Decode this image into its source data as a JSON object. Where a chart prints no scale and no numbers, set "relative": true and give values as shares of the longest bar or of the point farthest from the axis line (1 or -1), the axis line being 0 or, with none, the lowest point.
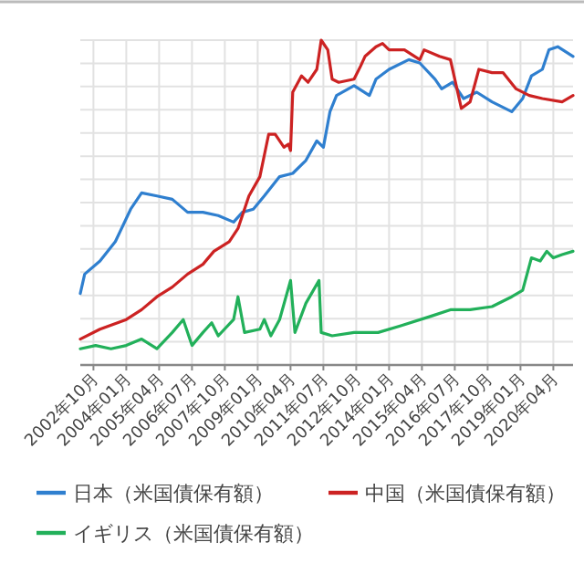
{
  "chart_data": {
    "type": "line",
    "relative": true,
    "grid": true,
    "legend": "bottom",
    "xlim": [
      "2002-04",
      "2021-01"
    ],
    "xticks": [
      {
        "value": "2002-10",
        "label": "2002年10月"
      },
      {
        "value": "2004-01",
        "label": "2004年01月"
      },
      {
        "value": "2005-04",
        "label": "2005年04月"
      },
      {
        "value": "2006-07",
        "label": "2006年07月"
      },
      {
        "value": "2007-10",
        "label": "2007年10月"
      },
      {
        "value": "2009-01",
        "label": "2009年01月"
      },
      {
        "value": "2010-04",
        "label": "2010年04月"
      },
      {
        "value": "2011-07",
        "label": "2011年07月"
      },
      {
        "value": "2012-10",
        "label": "2012年10月"
      },
      {
        "value": "2014-01",
        "label": "2014年01月"
      },
      {
        "value": "2015-04",
        "label": "2015年04月"
      },
      {
        "value": "2016-07",
        "label": "2016年07月"
      },
      {
        "value": "2017-10",
        "label": "2017年10月"
      },
      {
        "value": "2019-01",
        "label": "2019年01月"
      },
      {
        "value": "2020-04",
        "label": "2020年04月"
      }
    ],
    "series": [
      {
        "name": "日本（米国債保有額）",
        "color": "#2f7fcf",
        "x": [
          "2002-04",
          "2002-06",
          "2003-01",
          "2003-08",
          "2004-03",
          "2004-08",
          "2005-03",
          "2005-10",
          "2006-05",
          "2006-12",
          "2007-07",
          "2008-02",
          "2008-06",
          "2008-11",
          "2009-04",
          "2009-11",
          "2010-05",
          "2010-11",
          "2011-04",
          "2011-07",
          "2011-10",
          "2012-01",
          "2012-09",
          "2013-04",
          "2013-07",
          "2014-01",
          "2014-10",
          "2015-03",
          "2015-10",
          "2016-01",
          "2016-06",
          "2016-11",
          "2017-05",
          "2017-12",
          "2018-09",
          "2019-02",
          "2019-06",
          "2019-11",
          "2020-02",
          "2020-06",
          "2021-01"
        ],
        "values": [
          0.22,
          0.28,
          0.32,
          0.38,
          0.48,
          0.53,
          0.52,
          0.51,
          0.47,
          0.47,
          0.46,
          0.44,
          0.47,
          0.48,
          0.52,
          0.58,
          0.59,
          0.63,
          0.69,
          0.67,
          0.78,
          0.83,
          0.86,
          0.83,
          0.88,
          0.91,
          0.94,
          0.93,
          0.88,
          0.85,
          0.87,
          0.82,
          0.84,
          0.81,
          0.78,
          0.82,
          0.89,
          0.91,
          0.97,
          0.98,
          0.95
        ]
      },
      {
        "name": "中国（米国債保有額）",
        "color": "#cc2222",
        "x": [
          "2002-04",
          "2003-01",
          "2004-01",
          "2004-08",
          "2005-03",
          "2005-10",
          "2006-05",
          "2006-12",
          "2007-05",
          "2007-12",
          "2008-04",
          "2008-09",
          "2009-02",
          "2009-06",
          "2009-09",
          "2010-01",
          "2010-03",
          "2010-04",
          "2010-05",
          "2010-09",
          "2010-12",
          "2011-04",
          "2011-06",
          "2011-09",
          "2011-11",
          "2012-02",
          "2012-09",
          "2012-12",
          "2013-02",
          "2013-07",
          "2013-10",
          "2014-01",
          "2014-08",
          "2015-03",
          "2015-05",
          "2015-12",
          "2016-05",
          "2016-10",
          "2017-02",
          "2017-06",
          "2017-12",
          "2018-05",
          "2018-11",
          "2019-05",
          "2019-11",
          "2020-08",
          "2021-01"
        ],
        "values": [
          0.08,
          0.11,
          0.14,
          0.17,
          0.21,
          0.24,
          0.28,
          0.31,
          0.35,
          0.38,
          0.42,
          0.52,
          0.58,
          0.71,
          0.71,
          0.67,
          0.68,
          0.66,
          0.84,
          0.89,
          0.87,
          0.91,
          1,
          0.97,
          0.88,
          0.87,
          0.88,
          0.92,
          0.95,
          0.98,
          0.99,
          0.97,
          0.97,
          0.94,
          0.97,
          0.95,
          0.94,
          0.79,
          0.81,
          0.91,
          0.9,
          0.9,
          0.85,
          0.83,
          0.82,
          0.81,
          0.83
        ]
      },
      {
        "name": "イギリス（米国債保有額）",
        "color": "#22b05a",
        "x": [
          "2002-04",
          "2002-11",
          "2003-06",
          "2004-01",
          "2004-08",
          "2005-03",
          "2005-10",
          "2006-03",
          "2006-07",
          "2006-12",
          "2007-04",
          "2007-07",
          "2008-02",
          "2008-04",
          "2008-07",
          "2009-02",
          "2009-04",
          "2009-07",
          "2009-11",
          "2010-04",
          "2010-06",
          "2010-11",
          "2011-05",
          "2011-06",
          "2011-11",
          "2012-09",
          "2013-08",
          "2014-06",
          "2015-08",
          "2016-05",
          "2017-02",
          "2017-12",
          "2018-09",
          "2019-02",
          "2019-06",
          "2019-10",
          "2020-01",
          "2020-04",
          "2020-08",
          "2021-01"
        ],
        "values": [
          0.05,
          0.06,
          0.05,
          0.06,
          0.08,
          0.05,
          0.1,
          0.14,
          0.06,
          0.1,
          0.13,
          0.09,
          0.14,
          0.21,
          0.1,
          0.11,
          0.14,
          0.09,
          0.14,
          0.26,
          0.1,
          0.19,
          0.26,
          0.1,
          0.09,
          0.1,
          0.1,
          0.12,
          0.15,
          0.17,
          0.17,
          0.18,
          0.21,
          0.23,
          0.33,
          0.32,
          0.35,
          0.33,
          0.34,
          0.35
        ]
      }
    ]
  }
}
